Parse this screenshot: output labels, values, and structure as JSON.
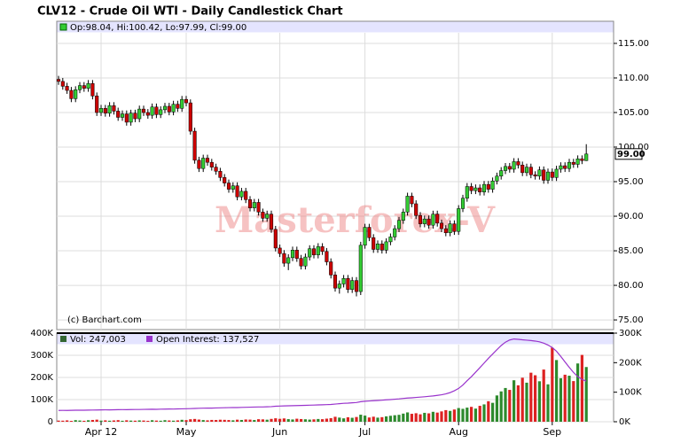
{
  "chart_data": [
    {
      "type": "candlestick",
      "title": "CLV12 - Crude Oil WTI - Daily Candlestick Chart",
      "legend_text": "Op:98.04, Hi:100.42, Lo:97.99, Cl:99.00",
      "copyright": "(c) Barchart.com",
      "watermark": "Masterforex-V",
      "last_label": "99.00",
      "up_color": "#33cc33",
      "down_color": "#cc0000",
      "ylim": [
        73.6,
        118.2
      ],
      "yticks": [
        {
          "value": 75,
          "label": "75.00"
        },
        {
          "value": 80,
          "label": "80.00"
        },
        {
          "value": 85,
          "label": "85.00"
        },
        {
          "value": 90,
          "label": "90.00"
        },
        {
          "value": 95,
          "label": "95.00"
        },
        {
          "value": 100,
          "label": "100.00"
        },
        {
          "value": 105,
          "label": "105.00"
        },
        {
          "value": 110,
          "label": "110.00"
        },
        {
          "value": 115,
          "label": "115.00"
        }
      ],
      "grid": true,
      "open": [
        109.8,
        109.5,
        108.8,
        108.2,
        107.0,
        108.3,
        108.9,
        108.5,
        109.2,
        107.4,
        105.0,
        105.6,
        104.9,
        106.0,
        105.2,
        104.3,
        104.8,
        103.6,
        104.9,
        104.1,
        105.5,
        105.0,
        104.6,
        105.8,
        104.7,
        105.4,
        105.9,
        105.1,
        106.2,
        105.6,
        106.9,
        106.4,
        102.3,
        98.1,
        96.9,
        98.4,
        97.8,
        97.1,
        96.5,
        95.6,
        94.8,
        93.9,
        94.4,
        92.8,
        93.6,
        92.4,
        91.2,
        92.0,
        90.6,
        89.7,
        90.3,
        88.1,
        85.4,
        84.6,
        83.2,
        84.0,
        85.1,
        83.9,
        82.8,
        84.1,
        85.3,
        84.4,
        85.6,
        84.9,
        83.4,
        81.5,
        79.6,
        80.2,
        81.0,
        79.4,
        80.7,
        79.1,
        85.8,
        88.4,
        86.9,
        85.2,
        86.0,
        85.1,
        86.3,
        87.0,
        88.2,
        89.4,
        90.6,
        92.9,
        91.8,
        90.1,
        88.9,
        89.6,
        88.7,
        90.3,
        89.0,
        88.2,
        87.6,
        88.9,
        87.8,
        91.1,
        92.6,
        94.3,
        93.7,
        94.1,
        93.5,
        94.6,
        93.9,
        95.1,
        95.8,
        96.6,
        97.2,
        96.8,
        97.9,
        97.4,
        96.3,
        97.1,
        96.0,
        95.8,
        96.7,
        95.2,
        96.4,
        95.6,
        96.8,
        97.3,
        96.9,
        97.8,
        97.5,
        98.3,
        98.04
      ],
      "high": [
        110.3,
        110.0,
        109.3,
        108.7,
        108.8,
        109.4,
        109.4,
        109.7,
        109.7,
        107.9,
        106.1,
        106.1,
        106.5,
        106.5,
        105.7,
        105.3,
        105.3,
        105.4,
        105.4,
        106.0,
        106.0,
        105.5,
        106.3,
        106.3,
        105.9,
        106.4,
        106.4,
        106.7,
        106.7,
        107.4,
        107.4,
        106.9,
        102.8,
        98.6,
        98.9,
        98.9,
        98.3,
        97.6,
        97.0,
        96.1,
        95.3,
        94.9,
        94.9,
        94.1,
        94.1,
        92.9,
        92.5,
        92.5,
        91.1,
        90.8,
        90.8,
        88.6,
        85.9,
        85.1,
        84.5,
        85.6,
        85.6,
        84.4,
        84.6,
        85.8,
        85.8,
        86.1,
        86.1,
        85.4,
        83.9,
        82.0,
        80.7,
        81.5,
        81.5,
        81.2,
        81.2,
        86.3,
        88.9,
        88.9,
        87.4,
        86.5,
        86.5,
        86.8,
        87.5,
        88.7,
        89.9,
        91.1,
        93.4,
        93.4,
        92.3,
        90.6,
        90.1,
        90.1,
        90.8,
        90.8,
        89.5,
        88.7,
        89.4,
        89.4,
        91.6,
        93.1,
        94.8,
        94.8,
        94.6,
        94.6,
        95.1,
        95.1,
        95.6,
        96.3,
        97.1,
        97.7,
        97.7,
        98.4,
        98.4,
        97.9,
        97.6,
        97.6,
        96.5,
        97.2,
        97.2,
        96.9,
        96.9,
        97.3,
        97.8,
        97.8,
        98.3,
        98.3,
        98.8,
        98.8,
        100.42
      ],
      "low": [
        109.0,
        108.3,
        107.7,
        106.5,
        106.5,
        107.8,
        108.0,
        108.0,
        106.9,
        104.5,
        104.5,
        104.4,
        104.4,
        104.7,
        103.8,
        103.8,
        103.1,
        103.1,
        103.6,
        103.6,
        104.5,
        104.1,
        104.1,
        104.2,
        104.2,
        104.9,
        104.6,
        104.6,
        105.1,
        105.1,
        105.9,
        101.8,
        97.6,
        96.4,
        96.4,
        97.3,
        96.6,
        96.0,
        95.1,
        94.3,
        93.4,
        93.4,
        92.3,
        92.3,
        91.9,
        90.7,
        90.7,
        90.1,
        89.2,
        89.2,
        87.6,
        84.9,
        84.1,
        82.7,
        82.2,
        83.5,
        83.4,
        82.3,
        82.3,
        83.6,
        83.9,
        83.9,
        84.4,
        82.9,
        81.0,
        79.1,
        78.8,
        79.7,
        78.9,
        78.9,
        78.4,
        78.6,
        85.3,
        86.4,
        84.7,
        84.7,
        84.6,
        84.6,
        85.8,
        86.5,
        87.7,
        88.9,
        90.1,
        91.3,
        89.6,
        88.4,
        88.4,
        88.2,
        88.2,
        88.5,
        87.7,
        87.1,
        87.1,
        87.3,
        87.3,
        90.6,
        92.1,
        93.2,
        93.2,
        93.0,
        93.0,
        93.4,
        93.4,
        94.6,
        95.3,
        96.1,
        96.3,
        96.3,
        96.9,
        95.8,
        95.8,
        95.5,
        95.3,
        95.3,
        94.7,
        94.7,
        95.1,
        95.1,
        96.3,
        96.4,
        96.4,
        97.0,
        97.0,
        97.54,
        97.99
      ],
      "close": [
        109.5,
        108.8,
        108.2,
        107.0,
        108.3,
        108.9,
        108.5,
        109.2,
        107.4,
        105.0,
        105.6,
        104.9,
        106.0,
        105.2,
        104.3,
        104.8,
        103.6,
        104.9,
        104.1,
        105.5,
        105.0,
        104.6,
        105.8,
        104.7,
        105.4,
        105.9,
        105.1,
        106.2,
        105.6,
        106.9,
        106.4,
        102.3,
        98.1,
        96.9,
        98.4,
        97.8,
        97.1,
        96.5,
        95.6,
        94.8,
        93.9,
        94.4,
        92.8,
        93.6,
        92.4,
        91.2,
        92.0,
        90.6,
        89.7,
        90.3,
        88.1,
        85.4,
        84.6,
        83.2,
        84.0,
        85.1,
        83.9,
        82.8,
        84.1,
        85.3,
        84.4,
        85.6,
        84.9,
        83.4,
        81.5,
        79.6,
        80.2,
        81.0,
        79.4,
        80.7,
        79.1,
        85.8,
        88.4,
        86.9,
        85.2,
        86.0,
        85.1,
        86.3,
        87.0,
        88.2,
        89.4,
        90.6,
        92.9,
        91.8,
        90.1,
        88.9,
        89.6,
        88.7,
        90.3,
        89.0,
        88.2,
        87.6,
        88.9,
        87.8,
        91.1,
        92.6,
        94.3,
        93.7,
        94.1,
        93.5,
        94.6,
        93.9,
        95.1,
        95.8,
        96.6,
        97.2,
        96.8,
        97.9,
        97.4,
        96.3,
        97.1,
        96.0,
        95.8,
        96.7,
        95.2,
        96.4,
        95.6,
        96.8,
        97.3,
        96.9,
        97.8,
        97.5,
        98.3,
        98.04,
        99.0
      ]
    },
    {
      "type": "bar",
      "ylim": [
        0,
        400000
      ],
      "yticks": [
        0,
        {
          "value": 100000,
          "label": "100K"
        },
        {
          "value": 200000,
          "label": "200K"
        },
        {
          "value": 300000,
          "label": "300K"
        },
        {
          "value": 400000,
          "label": "400K"
        }
      ],
      "y2lim": [
        0,
        300000
      ],
      "y2ticks": [
        {
          "value": 0,
          "label": "0K"
        },
        {
          "value": 100000,
          "label": "100K"
        },
        {
          "value": 200000,
          "label": "200K"
        },
        {
          "value": 300000,
          "label": "300K"
        }
      ],
      "xticks": [
        {
          "value": 10,
          "label": "Apr 12"
        },
        {
          "value": 30,
          "label": "May"
        },
        {
          "value": 52,
          "label": "Jun"
        },
        {
          "value": 72,
          "label": "Jul"
        },
        {
          "value": 94,
          "label": "Aug"
        },
        {
          "value": 116,
          "label": "Sep"
        }
      ],
      "grid": true,
      "series": [
        {
          "name": "Vol: 247,003",
          "color": "#336633",
          "values": [
            5200,
            4800,
            6100,
            3900,
            7200,
            5600,
            4300,
            6800,
            8100,
            9400,
            5100,
            6300,
            4700,
            5900,
            7300,
            4400,
            6600,
            5200,
            4800,
            6100,
            5500,
            4200,
            6900,
            5300,
            4600,
            7100,
            5800,
            4900,
            6200,
            8700,
            7400,
            11200,
            12600,
            9800,
            7600,
            6400,
            8200,
            7900,
            9100,
            8600,
            7700,
            6500,
            9300,
            8100,
            10200,
            9600,
            7800,
            11400,
            10700,
            9200,
            12800,
            15600,
            13100,
            14900,
            11800,
            10300,
            13600,
            12200,
            11100,
            9700,
            10800,
            12400,
            11600,
            13900,
            16200,
            22400,
            18700,
            15300,
            20100,
            17800,
            21400,
            31800,
            27600,
            19200,
            22800,
            18500,
            20700,
            24300,
            26900,
            29400,
            31200,
            36700,
            42100,
            35800,
            38400,
            33600,
            40200,
            37900,
            44800,
            41300,
            46700,
            52400,
            48900,
            55200,
            61800,
            58300,
            63700,
            67200,
            59400,
            71800,
            78300,
            92600,
            85400,
            118700,
            136900,
            152300,
            143800,
            187200,
            164500,
            198600,
            176300,
            221400,
            209800,
            182700,
            235600,
            168900,
            334200,
            278500,
            196400,
            212300,
            207800,
            183600,
            263100,
            301700,
            247003
          ]
        },
        {
          "name": "Open Interest: 137,527",
          "color": "#9933cc",
          "axis": "y2",
          "values": [
            38200,
            38400,
            38300,
            38700,
            38900,
            39100,
            39000,
            39400,
            39600,
            39800,
            40100,
            40300,
            40200,
            40600,
            40800,
            41000,
            40900,
            41300,
            41500,
            41400,
            41800,
            42000,
            42300,
            42100,
            42600,
            42800,
            43100,
            43000,
            43400,
            43700,
            44000,
            44400,
            45100,
            45600,
            45900,
            46300,
            46200,
            46700,
            47100,
            47400,
            47800,
            48200,
            48100,
            48600,
            49000,
            49300,
            49700,
            50100,
            50000,
            50600,
            51200,
            52400,
            53100,
            53600,
            53900,
            54300,
            54800,
            55200,
            55600,
            56100,
            56500,
            57000,
            57400,
            57900,
            58600,
            59800,
            61200,
            62400,
            63100,
            64200,
            65100,
            67800,
            69400,
            70300,
            71200,
            72100,
            73000,
            74200,
            75100,
            76300,
            77400,
            78900,
            80200,
            81100,
            82300,
            83400,
            84600,
            86100,
            87400,
            89200,
            91300,
            94200,
            98600,
            104800,
            112700,
            124300,
            138900,
            152400,
            167800,
            183200,
            198700,
            214600,
            229300,
            243800,
            258100,
            269400,
            276800,
            280200,
            279100,
            277400,
            276200,
            274800,
            273100,
            270600,
            266200,
            259800,
            251300,
            238700,
            221400,
            202600,
            184300,
            166800,
            152900,
            143200,
            137527
          ]
        }
      ]
    }
  ]
}
